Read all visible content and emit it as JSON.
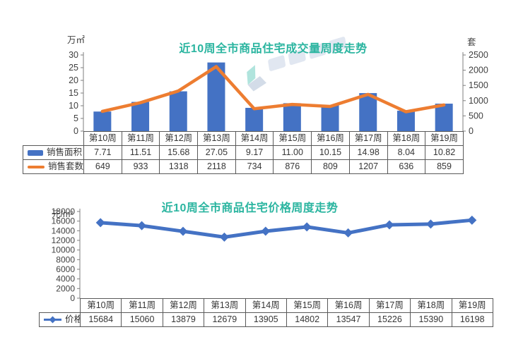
{
  "page": {
    "background": "#ffffff",
    "border_color": "#595959",
    "text_color": "#404040",
    "title_color": "#2bb5a0",
    "axis_color": "#7f7f7f"
  },
  "watermark": {
    "name": "site-logo-watermark",
    "logo_teal": "#45bfae",
    "text_color": "#7e99c0"
  },
  "chart_data": [
    {
      "type": "bar",
      "subtype": "bar+line combo",
      "title": "近10周全市商品住宅成交量周度走势",
      "categories": [
        "第10周",
        "第11周",
        "第12周",
        "第13周",
        "第14周",
        "第15周",
        "第16周",
        "第17周",
        "第18周",
        "第19周"
      ],
      "left_axis": {
        "unit": "万㎡",
        "min": 0,
        "max": 30,
        "step": 5
      },
      "right_axis": {
        "unit": "套",
        "min": 0,
        "max": 2500,
        "step": 500
      },
      "grid": false,
      "legend_position": "table-left",
      "series": [
        {
          "name": "销售面积",
          "type": "bar",
          "axis": "left",
          "color": "#4472C4",
          "values": [
            7.71,
            11.51,
            15.68,
            27.05,
            9.17,
            11.0,
            10.15,
            14.98,
            8.04,
            10.82
          ],
          "labels": [
            "7.71",
            "11.51",
            "15.68",
            "27.05",
            "9.17",
            "11.00",
            "10.15",
            "14.98",
            "8.04",
            "10.82"
          ]
        },
        {
          "name": "销售套数",
          "type": "line",
          "axis": "right",
          "color": "#ED7D31",
          "values": [
            649,
            933,
            1318,
            2118,
            734,
            876,
            809,
            1207,
            636,
            859
          ],
          "labels": [
            "649",
            "933",
            "1318",
            "2118",
            "734",
            "876",
            "809",
            "1207",
            "636",
            "859"
          ]
        }
      ]
    },
    {
      "type": "line",
      "title": "近10周全市商品住宅价格周度走势",
      "categories": [
        "第10周",
        "第11周",
        "第12周",
        "第13周",
        "第14周",
        "第15周",
        "第16周",
        "第17周",
        "第18周",
        "第19周"
      ],
      "left_axis": {
        "unit": "元/m²",
        "min": 0,
        "max": 18000,
        "step": 2000
      },
      "grid": false,
      "legend_position": "table-left",
      "series": [
        {
          "name": "价格",
          "type": "line",
          "marker": "diamond",
          "color": "#4472C4",
          "values": [
            15684,
            15060,
            13879,
            12679,
            13905,
            14802,
            13547,
            15226,
            15390,
            16198
          ],
          "labels": [
            "15684",
            "15060",
            "13879",
            "12679",
            "13905",
            "14802",
            "13547",
            "15226",
            "15390",
            "16198"
          ]
        }
      ]
    }
  ]
}
